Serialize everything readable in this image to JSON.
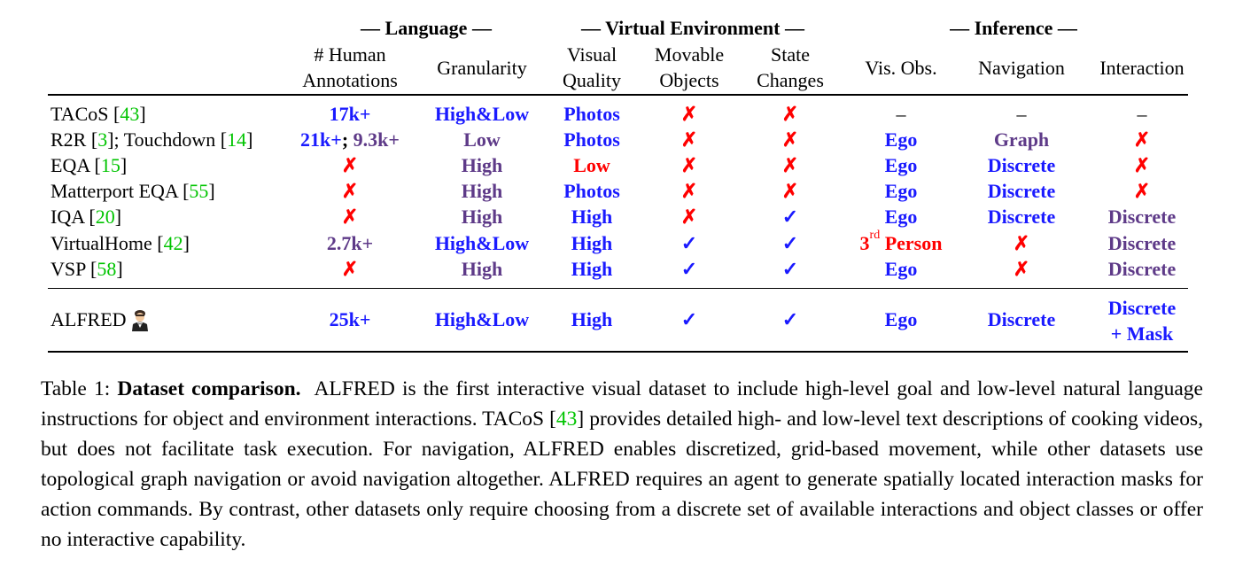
{
  "group_headers": {
    "language": "— Language —",
    "virtual_environment": "— Virtual Environment —",
    "inference": "— Inference —"
  },
  "columns": [
    [
      "# Human",
      "Annotations"
    ],
    [
      "Granularity"
    ],
    [
      "Visual",
      "Quality"
    ],
    [
      "Movable",
      "Objects"
    ],
    [
      "State",
      "Changes"
    ],
    [
      "Vis. Obs."
    ],
    [
      "Navigation"
    ],
    [
      "Interaction"
    ]
  ],
  "rows": [
    {
      "name": [
        {
          "t": "TACoS "
        },
        {
          "t": "[",
          "k": "p"
        },
        {
          "t": "43",
          "k": "g"
        },
        {
          "t": "]",
          "k": "p"
        }
      ],
      "cells": [
        [
          {
            "t": "17k+",
            "k": "blue"
          }
        ],
        [
          {
            "t": "High&Low",
            "k": "blue"
          }
        ],
        [
          {
            "t": "Photos",
            "k": "blue"
          }
        ],
        [
          {
            "t": "✗",
            "k": "red"
          }
        ],
        [
          {
            "t": "✗",
            "k": "red"
          }
        ],
        [
          {
            "t": "–"
          }
        ],
        [
          {
            "t": "–"
          }
        ],
        [
          {
            "t": "–"
          }
        ]
      ]
    },
    {
      "name": [
        {
          "t": "R2R "
        },
        {
          "t": "[",
          "k": "p"
        },
        {
          "t": "3",
          "k": "g"
        },
        {
          "t": "]; Touchdown ",
          "k": "p"
        },
        {
          "t": "[",
          "k": "p"
        },
        {
          "t": "14",
          "k": "g"
        },
        {
          "t": "]",
          "k": "p"
        }
      ],
      "cells": [
        [
          {
            "t": "21k+",
            "k": "blue"
          },
          {
            "t": "; ",
            "k": "bold"
          },
          {
            "t": "9.3k+",
            "k": "purple"
          }
        ],
        [
          {
            "t": "Low",
            "k": "purple"
          }
        ],
        [
          {
            "t": "Photos",
            "k": "blue"
          }
        ],
        [
          {
            "t": "✗",
            "k": "red"
          }
        ],
        [
          {
            "t": "✗",
            "k": "red"
          }
        ],
        [
          {
            "t": "Ego",
            "k": "blue"
          }
        ],
        [
          {
            "t": "Graph",
            "k": "purple"
          }
        ],
        [
          {
            "t": "✗",
            "k": "red"
          }
        ]
      ]
    },
    {
      "name": [
        {
          "t": "EQA "
        },
        {
          "t": "[",
          "k": "p"
        },
        {
          "t": "15",
          "k": "g"
        },
        {
          "t": "]",
          "k": "p"
        }
      ],
      "cells": [
        [
          {
            "t": "✗",
            "k": "red"
          }
        ],
        [
          {
            "t": "High",
            "k": "purple"
          }
        ],
        [
          {
            "t": "Low",
            "k": "red"
          }
        ],
        [
          {
            "t": "✗",
            "k": "red"
          }
        ],
        [
          {
            "t": "✗",
            "k": "red"
          }
        ],
        [
          {
            "t": "Ego",
            "k": "blue"
          }
        ],
        [
          {
            "t": "Discrete",
            "k": "blue"
          }
        ],
        [
          {
            "t": "✗",
            "k": "red"
          }
        ]
      ]
    },
    {
      "name": [
        {
          "t": "Matterport EQA "
        },
        {
          "t": "[",
          "k": "p"
        },
        {
          "t": "55",
          "k": "g"
        },
        {
          "t": "]",
          "k": "p"
        }
      ],
      "cells": [
        [
          {
            "t": "✗",
            "k": "red"
          }
        ],
        [
          {
            "t": "High",
            "k": "purple"
          }
        ],
        [
          {
            "t": "Photos",
            "k": "blue"
          }
        ],
        [
          {
            "t": "✗",
            "k": "red"
          }
        ],
        [
          {
            "t": "✗",
            "k": "red"
          }
        ],
        [
          {
            "t": "Ego",
            "k": "blue"
          }
        ],
        [
          {
            "t": "Discrete",
            "k": "blue"
          }
        ],
        [
          {
            "t": "✗",
            "k": "red"
          }
        ]
      ]
    },
    {
      "name": [
        {
          "t": "IQA "
        },
        {
          "t": "[",
          "k": "p"
        },
        {
          "t": "20",
          "k": "g"
        },
        {
          "t": "]",
          "k": "p"
        }
      ],
      "cells": [
        [
          {
            "t": "✗",
            "k": "red"
          }
        ],
        [
          {
            "t": "High",
            "k": "purple"
          }
        ],
        [
          {
            "t": "High",
            "k": "blue"
          }
        ],
        [
          {
            "t": "✗",
            "k": "red"
          }
        ],
        [
          {
            "t": "✓",
            "k": "blue"
          }
        ],
        [
          {
            "t": "Ego",
            "k": "blue"
          }
        ],
        [
          {
            "t": "Discrete",
            "k": "blue"
          }
        ],
        [
          {
            "t": "Discrete",
            "k": "purple"
          }
        ]
      ]
    },
    {
      "name": [
        {
          "t": "VirtualHome "
        },
        {
          "t": "[",
          "k": "p"
        },
        {
          "t": "42",
          "k": "g"
        },
        {
          "t": "]",
          "k": "p"
        }
      ],
      "cells": [
        [
          {
            "t": "2.7k+",
            "k": "purple"
          }
        ],
        [
          {
            "t": "High&Low",
            "k": "blue"
          }
        ],
        [
          {
            "t": "High",
            "k": "blue"
          }
        ],
        [
          {
            "t": "✓",
            "k": "blue"
          }
        ],
        [
          {
            "t": "✓",
            "k": "blue"
          }
        ],
        [
          {
            "t": "3",
            "k": "red"
          },
          {
            "t": "rd",
            "k": "redsup"
          },
          {
            "t": " Person",
            "k": "red"
          }
        ],
        [
          {
            "t": "✗",
            "k": "red"
          }
        ],
        [
          {
            "t": "Discrete",
            "k": "purple"
          }
        ]
      ]
    },
    {
      "name": [
        {
          "t": "VSP "
        },
        {
          "t": "[",
          "k": "p"
        },
        {
          "t": "58",
          "k": "g"
        },
        {
          "t": "]",
          "k": "p"
        }
      ],
      "cells": [
        [
          {
            "t": "✗",
            "k": "red"
          }
        ],
        [
          {
            "t": "High",
            "k": "purple"
          }
        ],
        [
          {
            "t": "High",
            "k": "blue"
          }
        ],
        [
          {
            "t": "✓",
            "k": "blue"
          }
        ],
        [
          {
            "t": "✓",
            "k": "blue"
          }
        ],
        [
          {
            "t": "Ego",
            "k": "blue"
          }
        ],
        [
          {
            "t": "✗",
            "k": "red"
          }
        ],
        [
          {
            "t": "Discrete",
            "k": "purple"
          }
        ]
      ]
    }
  ],
  "alfred_row": {
    "name": "ALFRED",
    "icon": "butler-icon",
    "cells": [
      [
        {
          "t": "25k+",
          "k": "blue"
        }
      ],
      [
        {
          "t": "High&Low",
          "k": "blue"
        }
      ],
      [
        {
          "t": "High",
          "k": "blue"
        }
      ],
      [
        {
          "t": "✓",
          "k": "blue"
        }
      ],
      [
        {
          "t": "✓",
          "k": "blue"
        }
      ],
      [
        {
          "t": "Ego",
          "k": "blue"
        }
      ],
      [
        {
          "t": "Discrete",
          "k": "blue"
        }
      ]
    ],
    "interaction": [
      "Discrete",
      "+ Mask"
    ]
  },
  "caption": {
    "label": "Table 1: ",
    "title": "Dataset comparison.",
    "text_before_ref": "  ALFRED is the first interactive visual dataset to include high-level goal and low-level natural language instructions for object and environment interactions. TACoS [",
    "ref": "43",
    "text_after_ref": "] provides detailed high- and low-level text descriptions of cooking videos, but does not facilitate task execution.  For navigation, ALFRED enables discretized, grid-based movement, while other datasets use topological graph navigation or avoid navigation altogether. ALFRED requires an agent to generate spatially located interaction masks for action commands. By contrast, other datasets only require choosing from a discrete set of available interactions and object classes or offer no interactive capability."
  },
  "colors": {
    "blue": "#1a1aff",
    "purple": "#5e3a88",
    "red": "#ff0000",
    "green": "#00c400"
  }
}
